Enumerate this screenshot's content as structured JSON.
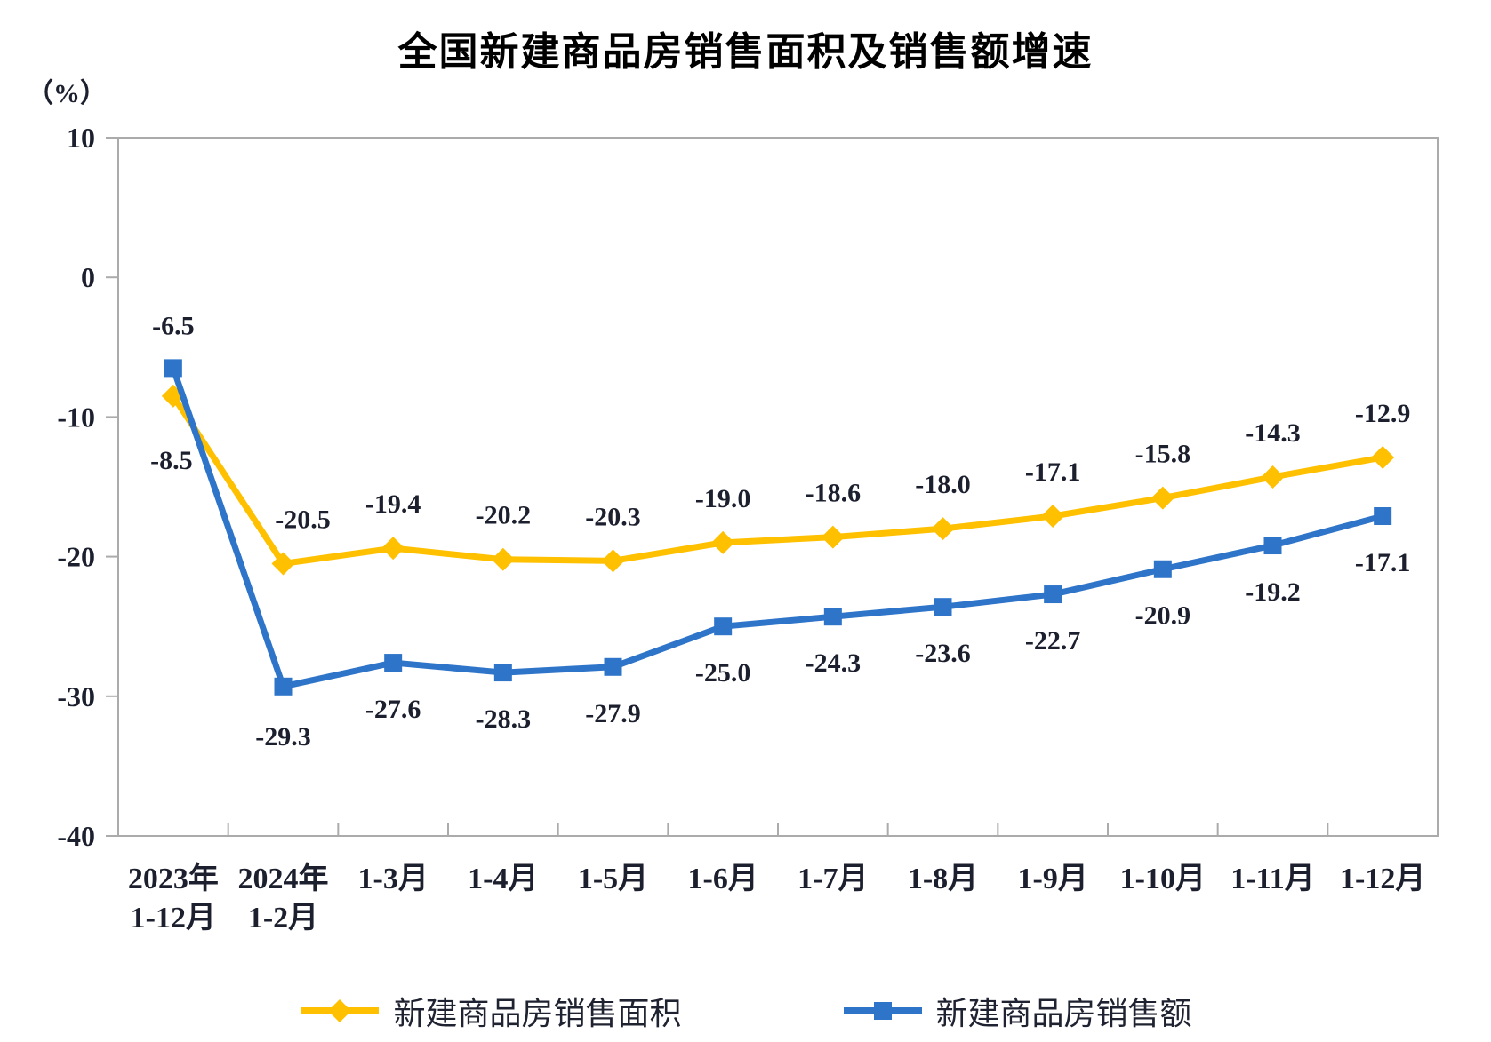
{
  "chart_data": {
    "type": "line",
    "title": "全国新建商品房销售面积及销售额增速",
    "xlabel": "",
    "ylabel": "（%）",
    "grid": false,
    "legend_position": "bottom",
    "y_axis": {
      "min": -40,
      "max": 10,
      "step": 10,
      "ticks": [
        10,
        0,
        -10,
        -20,
        -30,
        -40
      ]
    },
    "categories": [
      [
        "2023年",
        "1-12月"
      ],
      [
        "2024年",
        "1-2月"
      ],
      [
        "1-3月"
      ],
      [
        "1-4月"
      ],
      [
        "1-5月"
      ],
      [
        "1-6月"
      ],
      [
        "1-7月"
      ],
      [
        "1-8月"
      ],
      [
        "1-9月"
      ],
      [
        "1-10月"
      ],
      [
        "1-11月"
      ],
      [
        "1-12月"
      ]
    ],
    "series": [
      {
        "name": "新建商品房销售面积",
        "color": "#FFC000",
        "marker": "diamond",
        "values": [
          -8.5,
          -20.5,
          -19.4,
          -20.2,
          -20.3,
          -19.0,
          -18.6,
          -18.0,
          -17.1,
          -15.8,
          -14.3,
          -12.9
        ]
      },
      {
        "name": "新建商品房销售额",
        "color": "#2E74C9",
        "marker": "square",
        "values": [
          -6.5,
          -29.3,
          -27.6,
          -28.3,
          -27.9,
          -25.0,
          -24.3,
          -23.6,
          -22.7,
          -20.9,
          -19.2,
          -17.1
        ]
      }
    ]
  }
}
